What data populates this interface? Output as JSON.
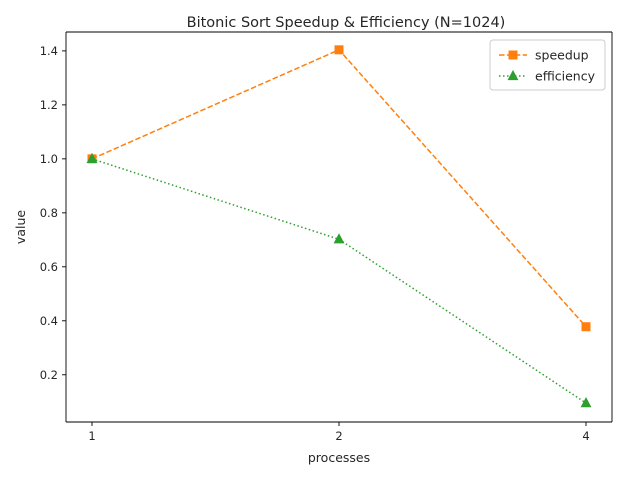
{
  "chart_data": {
    "type": "line",
    "title": "Bitonic Sort Speedup & Efficiency (N=1024)",
    "xlabel": "processes",
    "ylabel": "value",
    "categories": [
      "1",
      "2",
      "4"
    ],
    "ylim": [
      0.025,
      1.47
    ],
    "yticks": [
      "0.2",
      "0.4",
      "0.6",
      "0.8",
      "1.0",
      "1.2",
      "1.4"
    ],
    "grid": false,
    "legend_position": "top-right",
    "series": [
      {
        "name": "speedup",
        "values": [
          1.0,
          1.404,
          0.378
        ],
        "color": "#ff7f0e",
        "marker": "square",
        "linestyle": "dashed"
      },
      {
        "name": "efficiency",
        "values": [
          1.0,
          0.702,
          0.095
        ],
        "color": "#2ca02c",
        "marker": "triangle",
        "linestyle": "dotted"
      }
    ]
  }
}
